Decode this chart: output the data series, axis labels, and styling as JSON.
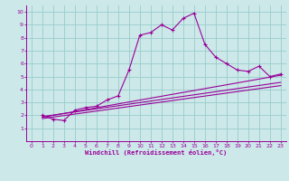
{
  "xlabel": "Windchill (Refroidissement éolien,°C)",
  "bg_color": "#cce8e8",
  "line_color": "#990099",
  "grid_color": "#99cccc",
  "xlim": [
    -0.5,
    23.5
  ],
  "ylim": [
    0,
    10.5
  ],
  "xticks": [
    0,
    1,
    2,
    3,
    4,
    5,
    6,
    7,
    8,
    9,
    10,
    11,
    12,
    13,
    14,
    15,
    16,
    17,
    18,
    19,
    20,
    21,
    22,
    23
  ],
  "yticks": [
    1,
    2,
    3,
    4,
    5,
    6,
    7,
    8,
    9,
    10
  ],
  "main_line_x": [
    1,
    2,
    3,
    4,
    5,
    6,
    7,
    8,
    9,
    10,
    11,
    12,
    13,
    14,
    15,
    16,
    17,
    18,
    19,
    20,
    21,
    22,
    23
  ],
  "main_line_y": [
    2.0,
    1.7,
    1.6,
    2.4,
    2.6,
    2.7,
    3.2,
    3.5,
    5.5,
    8.2,
    8.4,
    9.0,
    8.6,
    9.5,
    9.9,
    7.5,
    6.5,
    6.0,
    5.5,
    5.4,
    5.8,
    5.0,
    5.2
  ],
  "line2_x": [
    1,
    23
  ],
  "line2_y": [
    1.9,
    4.55
  ],
  "line3_x": [
    1,
    23
  ],
  "line3_y": [
    1.85,
    5.1
  ],
  "line4_x": [
    1,
    23
  ],
  "line4_y": [
    1.75,
    4.3
  ]
}
